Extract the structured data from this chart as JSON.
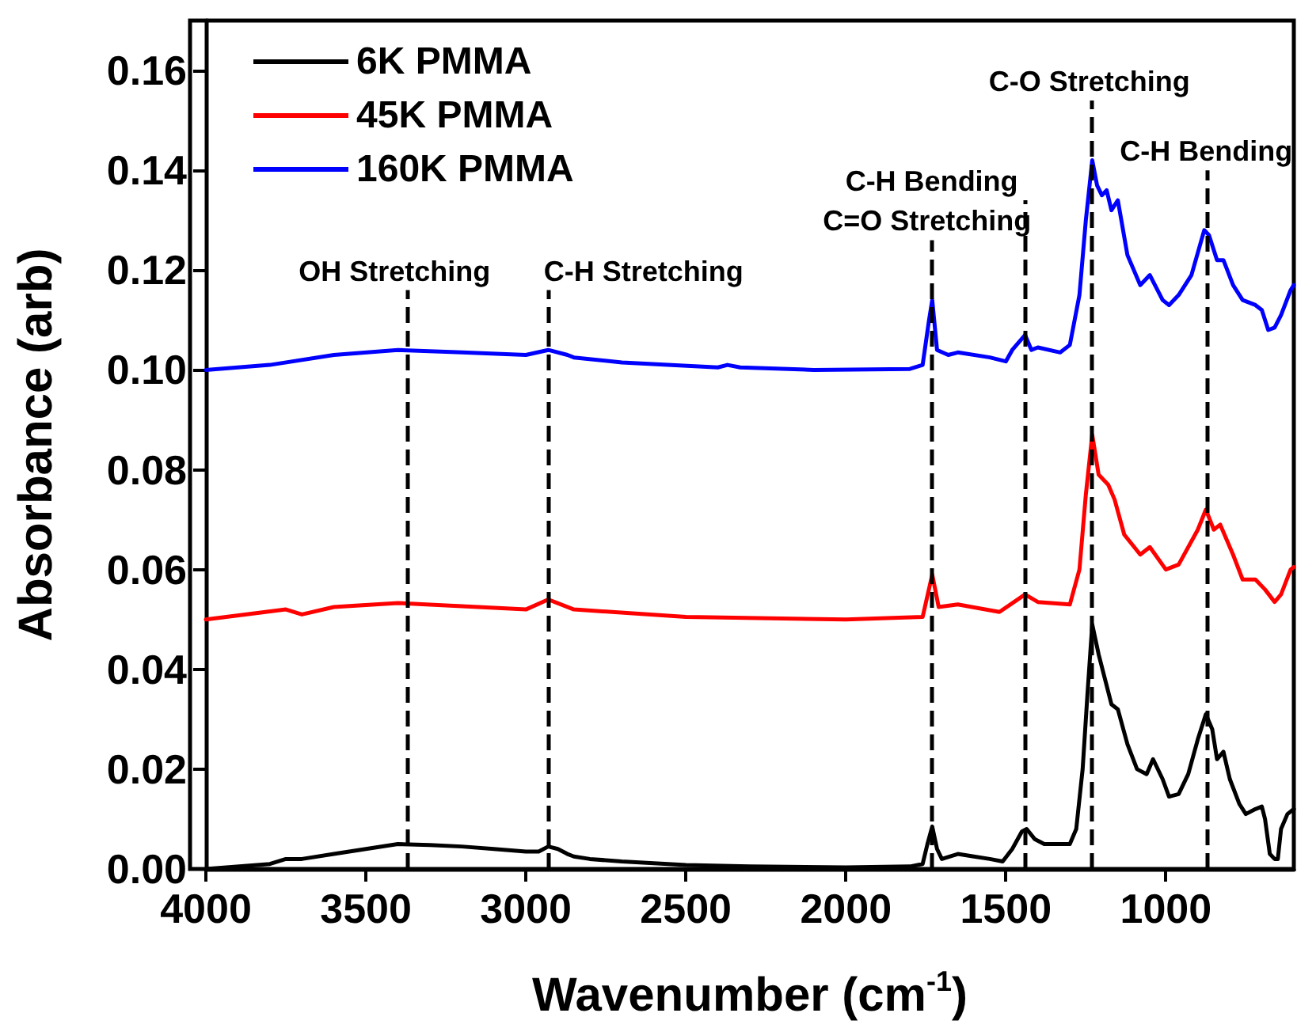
{
  "chart_data": {
    "type": "line",
    "xlabel": "Wavenumber (cm$^{-1}$)",
    "ylabel": "Absorbance (arb)",
    "xlim": [
      4000,
      600
    ],
    "xticks": [
      4000,
      3500,
      3000,
      2500,
      2000,
      1500,
      1000
    ],
    "ylim": [
      0,
      0.17
    ],
    "yticks": [
      {
        "value": 0,
        "label": "0.00"
      },
      {
        "value": 0.02,
        "label": "0.02"
      },
      {
        "value": 0.04,
        "label": "0.04"
      },
      {
        "value": 0.06,
        "label": "0.06"
      },
      {
        "value": 0.08,
        "label": "0.08"
      },
      {
        "value": 0.1,
        "label": "0.10"
      },
      {
        "value": 0.12,
        "label": "0.12"
      },
      {
        "value": 0.14,
        "label": "0.14"
      },
      {
        "value": 0.16,
        "label": "0.16"
      }
    ],
    "grid": false,
    "legend": "top left",
    "marker": "none",
    "line_style": "solid",
    "series": [
      {
        "name": "6K PMMA",
        "color": "#000000",
        "x": [
          4000,
          3800,
          3750,
          3700,
          3600,
          3500,
          3400,
          3300,
          3200,
          3100,
          3000,
          2960,
          2930,
          2900,
          2870,
          2850,
          2800,
          2700,
          2500,
          2300,
          2000,
          1800,
          1760,
          1745,
          1730,
          1715,
          1700,
          1650,
          1600,
          1550,
          1510,
          1480,
          1450,
          1435,
          1410,
          1380,
          1300,
          1280,
          1260,
          1245,
          1230,
          1210,
          1190,
          1170,
          1150,
          1120,
          1090,
          1060,
          1040,
          1010,
          990,
          960,
          930,
          900,
          875,
          855,
          840,
          820,
          800,
          770,
          750,
          720,
          700,
          690,
          675,
          660,
          650,
          640,
          620,
          600
        ],
        "values": [
          0.0,
          0.001,
          0.002,
          0.002,
          0.003,
          0.004,
          0.005,
          0.0048,
          0.0045,
          0.004,
          0.0035,
          0.0035,
          0.0045,
          0.004,
          0.003,
          0.0025,
          0.002,
          0.0015,
          0.0008,
          0.0005,
          0.0003,
          0.0005,
          0.001,
          0.005,
          0.0085,
          0.004,
          0.002,
          0.003,
          0.0025,
          0.002,
          0.0015,
          0.004,
          0.0075,
          0.008,
          0.006,
          0.005,
          0.005,
          0.008,
          0.02,
          0.035,
          0.049,
          0.043,
          0.038,
          0.033,
          0.032,
          0.025,
          0.02,
          0.019,
          0.022,
          0.018,
          0.0145,
          0.015,
          0.019,
          0.026,
          0.031,
          0.028,
          0.022,
          0.0235,
          0.018,
          0.013,
          0.011,
          0.012,
          0.0125,
          0.01,
          0.003,
          0.002,
          0.002,
          0.008,
          0.011,
          0.012
        ]
      },
      {
        "name": "45K PMMA",
        "color": "#ff0000",
        "x": [
          4000,
          3750,
          3700,
          3600,
          3400,
          3000,
          2930,
          2850,
          2500,
          2000,
          1760,
          1730,
          1710,
          1650,
          1520,
          1440,
          1400,
          1300,
          1270,
          1250,
          1230,
          1210,
          1180,
          1160,
          1130,
          1080,
          1050,
          1000,
          960,
          900,
          875,
          850,
          830,
          790,
          760,
          720,
          690,
          660,
          640,
          610,
          600
        ],
        "values": [
          0.05,
          0.052,
          0.051,
          0.0525,
          0.0533,
          0.052,
          0.054,
          0.052,
          0.0505,
          0.05,
          0.0505,
          0.059,
          0.0525,
          0.053,
          0.0515,
          0.055,
          0.0535,
          0.053,
          0.06,
          0.075,
          0.087,
          0.079,
          0.077,
          0.074,
          0.067,
          0.063,
          0.0645,
          0.06,
          0.061,
          0.068,
          0.072,
          0.068,
          0.069,
          0.063,
          0.058,
          0.058,
          0.056,
          0.0535,
          0.055,
          0.06,
          0.0605
        ]
      },
      {
        "name": "160K PMMA",
        "color": "#0000ff",
        "x": [
          4000,
          3800,
          3600,
          3400,
          3200,
          3000,
          2930,
          2870,
          2850,
          2700,
          2400,
          2370,
          2330,
          2100,
          1800,
          1760,
          1740,
          1730,
          1715,
          1680,
          1650,
          1550,
          1500,
          1480,
          1440,
          1420,
          1400,
          1330,
          1300,
          1270,
          1250,
          1230,
          1215,
          1200,
          1185,
          1170,
          1150,
          1120,
          1080,
          1050,
          1010,
          990,
          960,
          920,
          880,
          865,
          840,
          820,
          790,
          760,
          720,
          700,
          680,
          660,
          640,
          610,
          600
        ],
        "values": [
          0.1,
          0.101,
          0.103,
          0.104,
          0.1035,
          0.103,
          0.104,
          0.103,
          0.1025,
          0.1015,
          0.1005,
          0.101,
          0.1005,
          0.1,
          0.1002,
          0.101,
          0.11,
          0.114,
          0.104,
          0.103,
          0.1035,
          0.1025,
          0.1017,
          0.104,
          0.107,
          0.104,
          0.1045,
          0.1035,
          0.105,
          0.115,
          0.13,
          0.142,
          0.137,
          0.135,
          0.136,
          0.132,
          0.134,
          0.123,
          0.117,
          0.119,
          0.114,
          0.113,
          0.115,
          0.119,
          0.128,
          0.127,
          0.122,
          0.122,
          0.117,
          0.114,
          0.113,
          0.112,
          0.108,
          0.1085,
          0.111,
          0.116,
          0.117
        ]
      }
    ],
    "ref_lines": [
      {
        "axis": "x",
        "value": 3370,
        "label": "OH Stretching",
        "color": "#000000",
        "line_style": "dashed"
      },
      {
        "axis": "x",
        "value": 2930,
        "label": "C-H Stretching",
        "color": "#000000",
        "line_style": "dashed"
      },
      {
        "axis": "x",
        "value": 1730,
        "label": "C=O Stretching",
        "color": "#000000",
        "line_style": "dashed"
      },
      {
        "axis": "x",
        "value": 1440,
        "label": "C-H Bending",
        "color": "#000000",
        "line_style": "dashed"
      },
      {
        "axis": "x",
        "value": 1230,
        "label": "C-O Stretching",
        "color": "#000000",
        "line_style": "dashed"
      },
      {
        "axis": "x",
        "value": 870,
        "label": "C-H Bending",
        "color": "#000000",
        "line_style": "dashed"
      }
    ]
  }
}
